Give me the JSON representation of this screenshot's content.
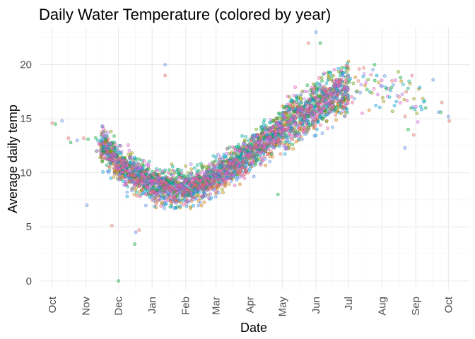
{
  "chart_data": {
    "type": "scatter",
    "title": "Daily Water Temperature (colored by year)",
    "xlabel": "Date",
    "ylabel": "Average daily temp",
    "x_ticks": [
      "Oct",
      "Nov",
      "Dec",
      "Jan",
      "Feb",
      "Mar",
      "Apr",
      "May",
      "Jun",
      "Jul",
      "Aug",
      "Sep",
      "Oct"
    ],
    "x_tick_dates": [
      "2000-10-01",
      "2000-11-01",
      "2000-12-01",
      "2001-01-01",
      "2001-02-01",
      "2001-03-01",
      "2001-04-01",
      "2001-05-01",
      "2001-06-01",
      "2001-07-01",
      "2001-08-01",
      "2001-09-01",
      "2001-10-01"
    ],
    "xlim": [
      "2000-09-20",
      "2001-10-21"
    ],
    "y_ticks": [
      0,
      5,
      10,
      15,
      20
    ],
    "ylim": [
      -0.8,
      23.5
    ],
    "grid": true,
    "legend": "none",
    "point_style": "semi-transparent circles with darker outline",
    "series_colors": [
      "#F8766D",
      "#E58700",
      "#C99800",
      "#A3A500",
      "#6BB100",
      "#00BA38",
      "#00BF7D",
      "#00C0AF",
      "#00BCD8",
      "#00B0F6",
      "#619CFF",
      "#B983FF",
      "#E76BF3",
      "#FD61D1",
      "#FF67A4"
    ],
    "trend_points": [
      [
        "2000-10-01",
        14.3
      ],
      [
        "2000-11-01",
        13.2
      ],
      [
        "2000-11-20",
        12.2
      ],
      [
        "2000-12-01",
        10.9
      ],
      [
        "2000-12-15",
        10.0
      ],
      [
        "2001-01-01",
        9.0
      ],
      [
        "2001-01-15",
        8.6
      ],
      [
        "2001-02-01",
        8.7
      ],
      [
        "2001-02-15",
        9.0
      ],
      [
        "2001-03-01",
        9.7
      ],
      [
        "2001-03-15",
        10.6
      ],
      [
        "2001-04-01",
        11.8
      ],
      [
        "2001-04-15",
        12.9
      ],
      [
        "2001-05-01",
        14.1
      ],
      [
        "2001-05-15",
        15.2
      ],
      [
        "2001-06-01",
        16.3
      ],
      [
        "2001-06-15",
        17.2
      ],
      [
        "2001-07-01",
        17.8
      ],
      [
        "2001-07-15",
        18.0
      ],
      [
        "2001-08-01",
        17.9
      ],
      [
        "2001-08-15",
        17.2
      ],
      [
        "2001-09-01",
        16.6
      ],
      [
        "2001-09-15",
        16.2
      ],
      [
        "2001-10-01",
        15.4
      ],
      [
        "2001-10-08",
        15.0
      ]
    ],
    "notable_points": [
      {
        "x": "2000-10-01",
        "y": 14.6
      },
      {
        "x": "2000-10-04",
        "y": 14.5
      },
      {
        "x": "2000-10-10",
        "y": 14.8
      },
      {
        "x": "2000-10-16",
        "y": 13.2
      },
      {
        "x": "2000-10-18",
        "y": 12.8
      },
      {
        "x": "2000-10-24",
        "y": 13.0
      },
      {
        "x": "2000-10-30",
        "y": 13.2
      },
      {
        "x": "2000-11-03",
        "y": 13.1
      },
      {
        "x": "2000-11-02",
        "y": 7.0
      },
      {
        "x": "2000-11-25",
        "y": 5.1
      },
      {
        "x": "2000-12-01",
        "y": 0.0
      },
      {
        "x": "2000-12-17",
        "y": 4.5
      },
      {
        "x": "2000-12-20",
        "y": 4.7
      },
      {
        "x": "2000-12-16",
        "y": 3.4
      },
      {
        "x": "2001-01-13",
        "y": 20.0
      },
      {
        "x": "2001-01-13",
        "y": 19.0
      },
      {
        "x": "2001-04-27",
        "y": 8.0
      },
      {
        "x": "2001-06-01",
        "y": 23.0
      },
      {
        "x": "2001-05-25",
        "y": 22.0
      },
      {
        "x": "2001-06-05",
        "y": 22.0
      },
      {
        "x": "2001-08-22",
        "y": 12.3
      },
      {
        "x": "2001-08-30",
        "y": 13.5
      },
      {
        "x": "2001-08-25",
        "y": 14.0
      },
      {
        "x": "2001-09-17",
        "y": 18.6
      },
      {
        "x": "2001-09-25",
        "y": 16.5
      },
      {
        "x": "2001-09-24",
        "y": 15.6
      },
      {
        "x": "2001-10-01",
        "y": 15.2
      },
      {
        "x": "2001-10-02",
        "y": 14.8
      },
      {
        "x": "2001-09-10",
        "y": 16.0
      },
      {
        "x": "2001-09-22",
        "y": 15.6
      },
      {
        "x": "2001-07-15",
        "y": 19.7
      },
      {
        "x": "2001-07-25",
        "y": 20.0
      },
      {
        "x": "2001-08-01",
        "y": 18.0
      },
      {
        "x": "2001-08-10",
        "y": 18.5
      },
      {
        "x": "2001-08-18",
        "y": 18.8
      }
    ],
    "density_note": "dense cloud of several thousand daily points along the seasonal trend (roughly 3000)"
  }
}
